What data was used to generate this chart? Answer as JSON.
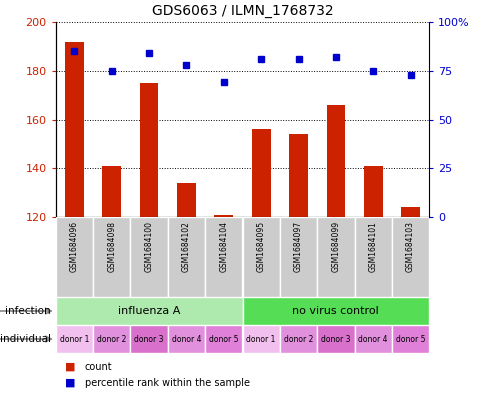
{
  "title": "GDS6063 / ILMN_1768732",
  "samples": [
    "GSM1684096",
    "GSM1684098",
    "GSM1684100",
    "GSM1684102",
    "GSM1684104",
    "GSM1684095",
    "GSM1684097",
    "GSM1684099",
    "GSM1684101",
    "GSM1684103"
  ],
  "counts": [
    192,
    141,
    175,
    134,
    121,
    156,
    154,
    166,
    141,
    124
  ],
  "percentiles": [
    85,
    75,
    84,
    78,
    69,
    81,
    81,
    82,
    75,
    73
  ],
  "ylim_left": [
    120,
    200
  ],
  "ylim_right": [
    0,
    100
  ],
  "yticks_left": [
    120,
    140,
    160,
    180,
    200
  ],
  "yticks_right": [
    0,
    25,
    50,
    75,
    100
  ],
  "infection_groups": [
    {
      "label": "influenza A",
      "start": 0,
      "end": 5,
      "color": "#AEEAAE"
    },
    {
      "label": "no virus control",
      "start": 5,
      "end": 10,
      "color": "#55DD55"
    }
  ],
  "donors": [
    "donor 1",
    "donor 2",
    "donor 3",
    "donor 4",
    "donor 5",
    "donor 1",
    "donor 2",
    "donor 3",
    "donor 4",
    "donor 5"
  ],
  "donor_colors": [
    "#F0B0E8",
    "#E080D8",
    "#D060C8",
    "#E080D8",
    "#D868D0",
    "#F0B0E8",
    "#E080D8",
    "#D060C8",
    "#E080D8",
    "#D868D0"
  ],
  "bar_color": "#CC2200",
  "dot_color": "#0000CC",
  "bar_width": 0.5,
  "sample_bg_color": "#CCCCCC",
  "left_label_color": "#CC2200",
  "right_label_color": "#0000CC"
}
